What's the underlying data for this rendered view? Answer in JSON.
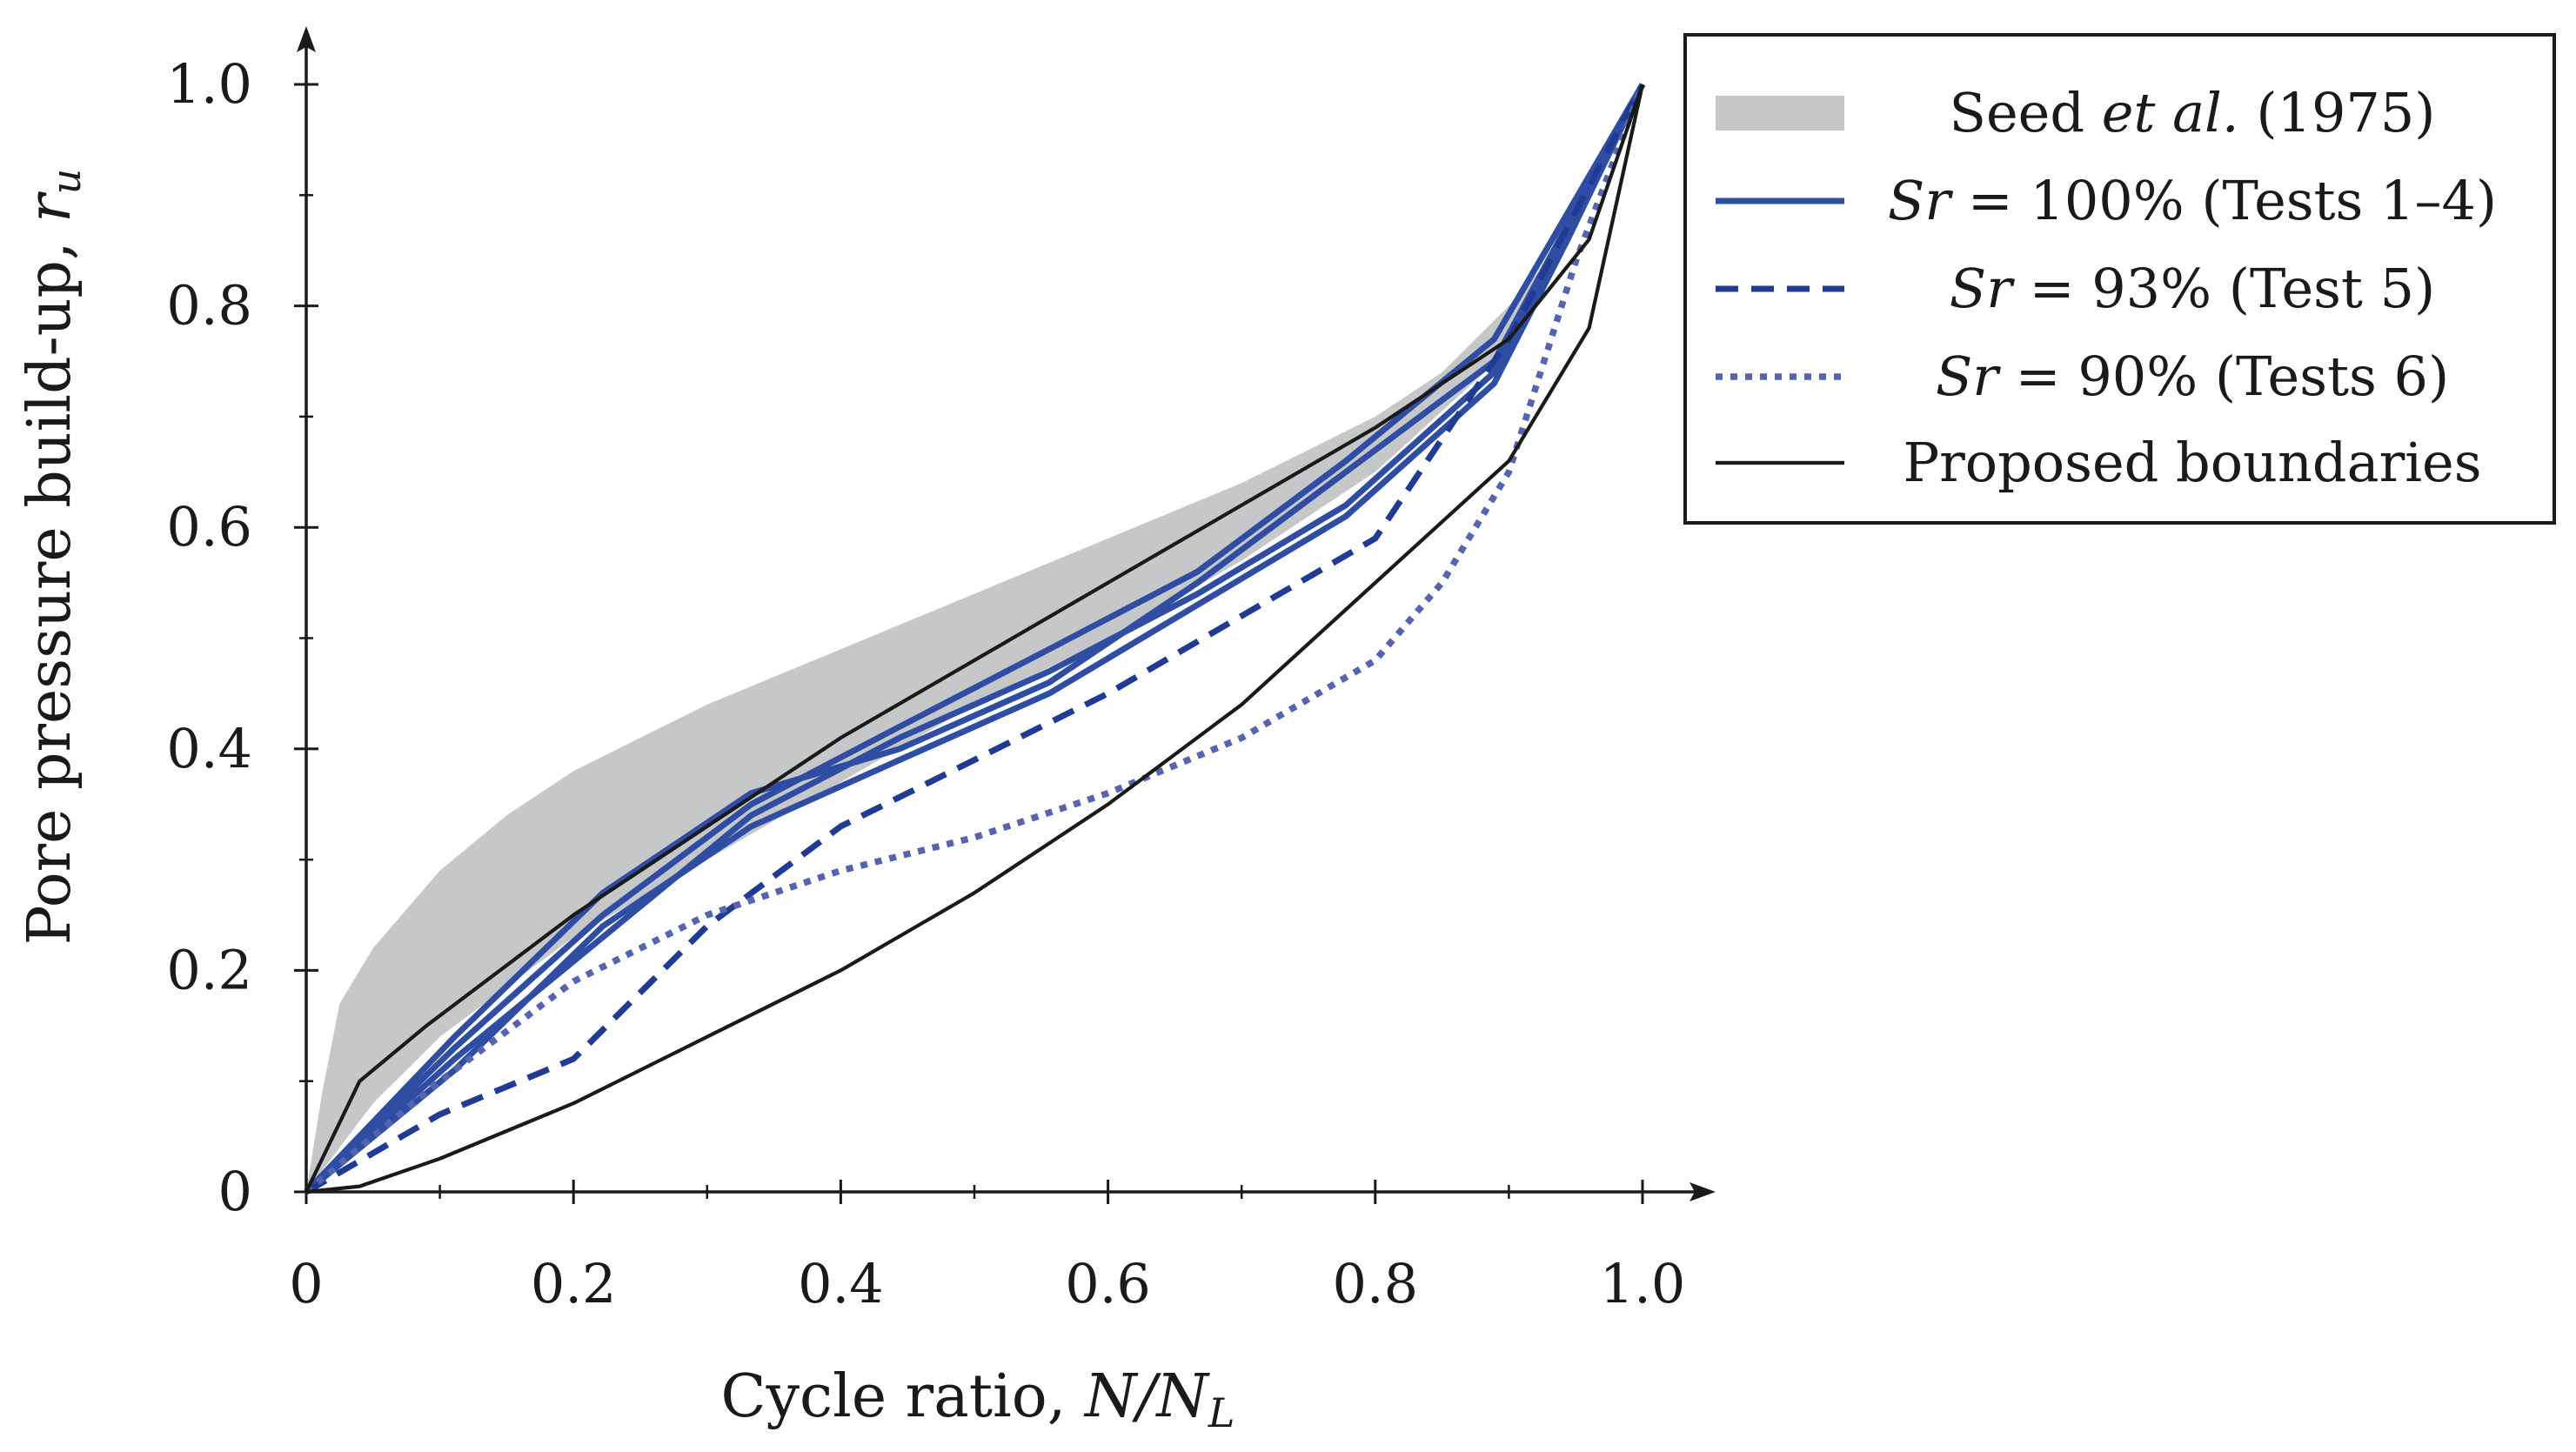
{
  "chart_data": {
    "type": "line",
    "title": "",
    "xlabel": "Cycle ratio, N/N_L",
    "ylabel": "Pore pressure build-up, r_u",
    "xlabel_main": "Cycle ratio, ",
    "xlabel_var": "N/N",
    "xlabel_sub": "L",
    "ylabel_main": "Pore pressure build-up, ",
    "ylabel_var": "r",
    "ylabel_sub": "u",
    "xlim": [
      0,
      1.0
    ],
    "ylim": [
      0,
      1.0
    ],
    "x_ticks": [
      0,
      0.2,
      0.4,
      0.6,
      0.8,
      1.0
    ],
    "x_tick_labels": [
      "0",
      "0.2",
      "0.4",
      "0.6",
      "0.8",
      "1.0"
    ],
    "y_ticks": [
      0,
      0.2,
      0.4,
      0.6,
      0.8,
      1.0
    ],
    "y_tick_labels": [
      "0",
      "0.2",
      "0.4",
      "0.6",
      "0.8",
      "1.0"
    ],
    "minor_ticks": [
      0.1,
      0.3,
      0.5,
      0.7,
      0.9
    ],
    "grid": false,
    "legend_position": "top-right (outside plot)",
    "colors": {
      "band": "#c6c7c9",
      "sat100": "#2f4da2",
      "sat93": "#1f3b94",
      "sat90": "#5563b0",
      "boundary": "#1a1a1a"
    },
    "legend": [
      {
        "key": "band",
        "label_pre": "Seed ",
        "label_italic": "et al.",
        "label_post": " (1975)"
      },
      {
        "key": "sat100",
        "label_pre": "",
        "label_italic": "Sr",
        "label_post": " = 100% (Tests 1–4)"
      },
      {
        "key": "sat93",
        "label_pre": "",
        "label_italic": "Sr",
        "label_post": " = 93% (Test 5)"
      },
      {
        "key": "sat90",
        "label_pre": "",
        "label_italic": "Sr",
        "label_post": " = 90% (Tests 6)"
      },
      {
        "key": "boundary",
        "label_pre": "Proposed boundaries",
        "label_italic": "",
        "label_post": ""
      }
    ],
    "band": {
      "name": "Seed et al. (1975)",
      "upper": [
        [
          0,
          0
        ],
        [
          0.012,
          0.09
        ],
        [
          0.025,
          0.17
        ],
        [
          0.05,
          0.22
        ],
        [
          0.1,
          0.29
        ],
        [
          0.15,
          0.34
        ],
        [
          0.2,
          0.38
        ],
        [
          0.3,
          0.44
        ],
        [
          0.4,
          0.49
        ],
        [
          0.5,
          0.54
        ],
        [
          0.6,
          0.59
        ],
        [
          0.7,
          0.64
        ],
        [
          0.8,
          0.7
        ],
        [
          0.85,
          0.74
        ],
        [
          0.9,
          0.8
        ],
        [
          0.95,
          0.87
        ],
        [
          1.0,
          1.0
        ]
      ],
      "lower": [
        [
          1.0,
          1.0
        ],
        [
          0.95,
          0.87
        ],
        [
          0.9,
          0.76
        ],
        [
          0.8,
          0.65
        ],
        [
          0.7,
          0.57
        ],
        [
          0.6,
          0.5
        ],
        [
          0.5,
          0.44
        ],
        [
          0.4,
          0.37
        ],
        [
          0.3,
          0.3
        ],
        [
          0.2,
          0.23
        ],
        [
          0.1,
          0.14
        ],
        [
          0.05,
          0.08
        ],
        [
          0,
          0
        ]
      ]
    },
    "series": [
      {
        "name": "Sr = 100% (Test 1)",
        "key": "sat100",
        "style": "solid",
        "points": [
          [
            0,
            0
          ],
          [
            0.111,
            0.14
          ],
          [
            0.222,
            0.27
          ],
          [
            0.333,
            0.36
          ],
          [
            0.444,
            0.4
          ],
          [
            0.556,
            0.46
          ],
          [
            0.667,
            0.55
          ],
          [
            0.778,
            0.65
          ],
          [
            0.889,
            0.75
          ],
          [
            1.0,
            1.0
          ]
        ]
      },
      {
        "name": "Sr = 100% (Test 2)",
        "key": "sat100",
        "style": "solid",
        "points": [
          [
            0,
            0
          ],
          [
            0.111,
            0.12
          ],
          [
            0.222,
            0.23
          ],
          [
            0.333,
            0.34
          ],
          [
            0.444,
            0.41
          ],
          [
            0.556,
            0.47
          ],
          [
            0.667,
            0.54
          ],
          [
            0.778,
            0.62
          ],
          [
            0.889,
            0.74
          ],
          [
            1.0,
            1.0
          ]
        ]
      },
      {
        "name": "Sr = 100% (Test 3)",
        "key": "sat100",
        "style": "solid",
        "points": [
          [
            0,
            0
          ],
          [
            0.111,
            0.13
          ],
          [
            0.222,
            0.25
          ],
          [
            0.333,
            0.35
          ],
          [
            0.444,
            0.42
          ],
          [
            0.556,
            0.49
          ],
          [
            0.667,
            0.56
          ],
          [
            0.778,
            0.66
          ],
          [
            0.889,
            0.77
          ],
          [
            1.0,
            1.0
          ]
        ]
      },
      {
        "name": "Sr = 100% (Test 4)",
        "key": "sat100",
        "style": "solid",
        "points": [
          [
            0,
            0
          ],
          [
            0.111,
            0.11
          ],
          [
            0.222,
            0.24
          ],
          [
            0.333,
            0.33
          ],
          [
            0.444,
            0.39
          ],
          [
            0.556,
            0.45
          ],
          [
            0.667,
            0.53
          ],
          [
            0.778,
            0.61
          ],
          [
            0.889,
            0.73
          ],
          [
            0.944,
            0.86
          ],
          [
            1.0,
            1.0
          ]
        ]
      },
      {
        "name": "Sr = 93% (Test 5)",
        "key": "sat93",
        "style": "dashed",
        "points": [
          [
            0,
            0
          ],
          [
            0.1,
            0.07
          ],
          [
            0.2,
            0.12
          ],
          [
            0.3,
            0.24
          ],
          [
            0.4,
            0.33
          ],
          [
            0.5,
            0.39
          ],
          [
            0.6,
            0.45
          ],
          [
            0.7,
            0.52
          ],
          [
            0.8,
            0.59
          ],
          [
            0.9,
            0.77
          ],
          [
            1.0,
            1.0
          ]
        ]
      },
      {
        "name": "Sr = 90% (Tests 6)",
        "key": "sat90",
        "style": "dotted",
        "points": [
          [
            0,
            0
          ],
          [
            0.1,
            0.1
          ],
          [
            0.2,
            0.19
          ],
          [
            0.3,
            0.25
          ],
          [
            0.4,
            0.29
          ],
          [
            0.5,
            0.32
          ],
          [
            0.6,
            0.36
          ],
          [
            0.7,
            0.41
          ],
          [
            0.8,
            0.48
          ],
          [
            0.85,
            0.55
          ],
          [
            0.9,
            0.65
          ],
          [
            0.95,
            0.84
          ],
          [
            1.0,
            1.0
          ]
        ]
      },
      {
        "name": "Proposed boundary (upper)",
        "key": "boundary",
        "style": "solid-thin",
        "points": [
          [
            0,
            0
          ],
          [
            0.04,
            0.1
          ],
          [
            0.09,
            0.15
          ],
          [
            0.2,
            0.25
          ],
          [
            0.3,
            0.33
          ],
          [
            0.4,
            0.41
          ],
          [
            0.5,
            0.48
          ],
          [
            0.6,
            0.55
          ],
          [
            0.7,
            0.62
          ],
          [
            0.8,
            0.69
          ],
          [
            0.9,
            0.77
          ],
          [
            0.96,
            0.86
          ],
          [
            1.0,
            1.0
          ]
        ]
      },
      {
        "name": "Proposed boundary (lower)",
        "key": "boundary",
        "style": "solid-thin",
        "points": [
          [
            0,
            0
          ],
          [
            0.04,
            0.005
          ],
          [
            0.1,
            0.03
          ],
          [
            0.2,
            0.08
          ],
          [
            0.3,
            0.14
          ],
          [
            0.4,
            0.2
          ],
          [
            0.5,
            0.27
          ],
          [
            0.6,
            0.35
          ],
          [
            0.7,
            0.44
          ],
          [
            0.8,
            0.55
          ],
          [
            0.9,
            0.66
          ],
          [
            0.96,
            0.78
          ],
          [
            1.0,
            1.0
          ]
        ]
      }
    ]
  }
}
